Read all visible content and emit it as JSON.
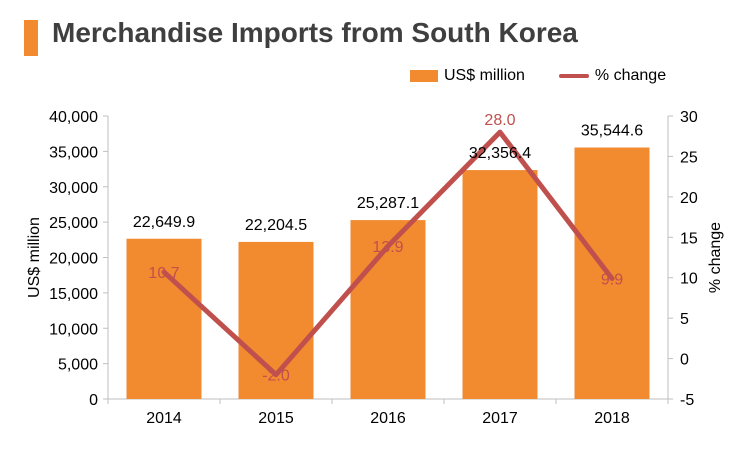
{
  "title": "Merchandise Imports from South Korea",
  "colors": {
    "bar": "#f28a30",
    "line": "#c0504d",
    "title_accent": "#f28a30",
    "title_text": "#3f3f3f"
  },
  "chart_data": {
    "type": "bar+line",
    "categories": [
      "2014",
      "2015",
      "2016",
      "2017",
      "2018"
    ],
    "series": [
      {
        "name": "US$ million",
        "type": "bar",
        "axis": "left",
        "values": [
          22649.9,
          22204.5,
          25287.1,
          32356.4,
          35544.6
        ],
        "labels": [
          "22,649.9",
          "22,204.5",
          "25,287.1",
          "32,356.4",
          "35,544.6"
        ]
      },
      {
        "name": "% change",
        "type": "line",
        "axis": "right",
        "values": [
          10.7,
          -2.0,
          13.9,
          28.0,
          9.9
        ],
        "labels": [
          "10.7",
          "-2.0",
          "13.9",
          "28.0",
          "9.9"
        ]
      }
    ],
    "y_left": {
      "label": "US$ million",
      "min": 0,
      "max": 40000,
      "step": 5000,
      "ticks": [
        "0",
        "5,000",
        "10,000",
        "15,000",
        "20,000",
        "25,000",
        "30,000",
        "35,000",
        "40,000"
      ]
    },
    "y_right": {
      "label": "% change",
      "min": -5,
      "max": 30,
      "step": 5,
      "ticks": [
        "-5",
        "0",
        "5",
        "10",
        "15",
        "20",
        "25",
        "30"
      ]
    },
    "legend_position": "top-right",
    "grid": false
  }
}
